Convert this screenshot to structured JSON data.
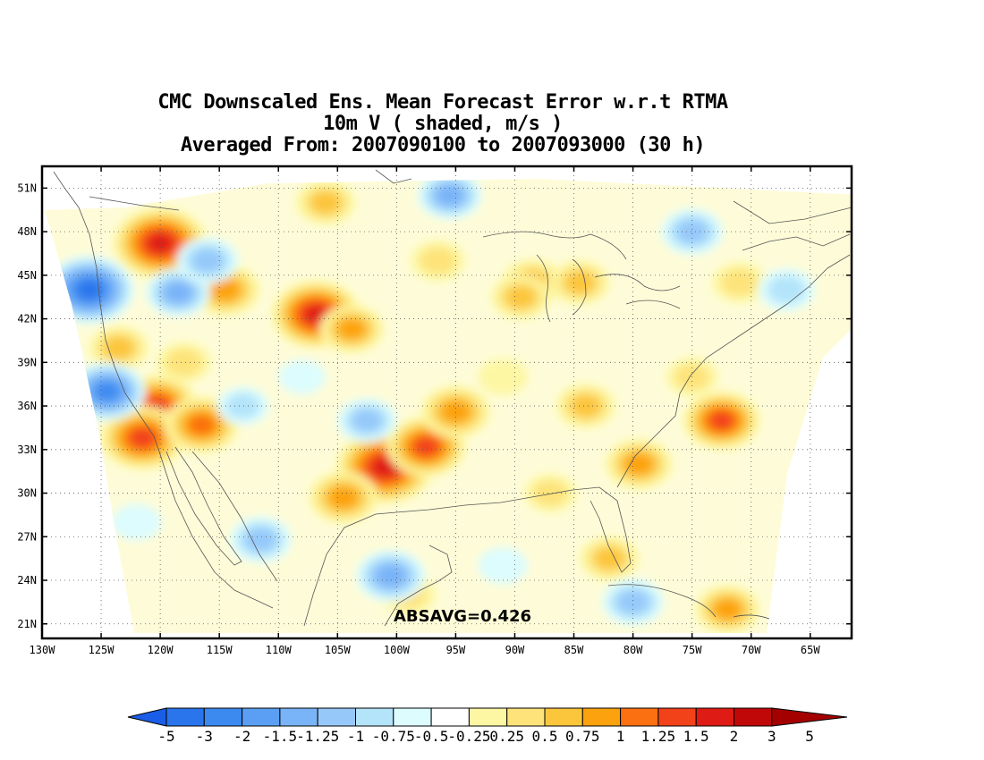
{
  "title": {
    "line1": "CMC Downscaled Ens. Mean Forecast Error w.r.t RTMA",
    "line2": "10m V ( shaded, m/s )",
    "line3": "Averaged From: 2007090100 to 2007093000 (30 h)"
  },
  "annotation": "ABSAVG=0.426",
  "axes": {
    "lat_labels": [
      "51N",
      "48N",
      "45N",
      "42N",
      "39N",
      "36N",
      "33N",
      "30N",
      "27N",
      "24N",
      "21N"
    ],
    "lon_labels": [
      "130W",
      "125W",
      "120W",
      "115W",
      "110W",
      "105W",
      "100W",
      "95W",
      "90W",
      "85W",
      "80W",
      "75W",
      "70W",
      "65W"
    ],
    "lat_values": [
      51,
      48,
      45,
      42,
      39,
      36,
      33,
      30,
      27,
      24,
      21
    ],
    "lon_values": [
      -130,
      -125,
      -120,
      -115,
      -110,
      -105,
      -100,
      -95,
      -90,
      -85,
      -80,
      -75,
      -70,
      -65
    ],
    "grid": "dotted"
  },
  "colorbar": {
    "labels": [
      "-5",
      "-3",
      "-2",
      "-1.5",
      "-1.25",
      "-1",
      "-0.75",
      "-0.5",
      "-0.25",
      "0.25",
      "0.5",
      "0.75",
      "1",
      "1.25",
      "1.5",
      "2",
      "3",
      "5"
    ],
    "colors": [
      "#1a5de6",
      "#2a75ec",
      "#3c8af0",
      "#5a9ff4",
      "#79b4f8",
      "#96c9fa",
      "#b4e4fa",
      "#dcfcfe",
      "#ffffff",
      "#fdf7a4",
      "#fde37a",
      "#fcc63c",
      "#fca20e",
      "#fb7010",
      "#f2421a",
      "#de1b14",
      "#c00808",
      "#a50000"
    ]
  },
  "chart_data": {
    "type": "heatmap",
    "title": "CMC Downscaled Ens. Mean Forecast Error w.r.t RTMA",
    "subtitle": "10m V ( shaded, m/s )",
    "xlim": [
      -130,
      -61.5
    ],
    "ylim": [
      20,
      52.5
    ],
    "units": "m/s",
    "absavg": 0.426,
    "blobs": [
      {
        "lon": -120,
        "lat": 47.2,
        "value": 2.2
      },
      {
        "lon": -106.8,
        "lat": 42.3,
        "value": 2.0
      },
      {
        "lon": -101,
        "lat": 31.8,
        "value": 2.3
      },
      {
        "lon": -97.5,
        "lat": 33.2,
        "value": 1.6
      },
      {
        "lon": -95,
        "lat": 35.6,
        "value": 1.2
      },
      {
        "lon": -120.3,
        "lat": 36,
        "value": 1.7
      },
      {
        "lon": -121.5,
        "lat": 33.8,
        "value": 1.8
      },
      {
        "lon": -116.5,
        "lat": 34.7,
        "value": 1.4
      },
      {
        "lon": -114.5,
        "lat": 44,
        "value": 1.2
      },
      {
        "lon": -103.8,
        "lat": 41.3,
        "value": 1.0
      },
      {
        "lon": -104.5,
        "lat": 29.7,
        "value": 1.2
      },
      {
        "lon": -72.5,
        "lat": 35,
        "value": 1.5
      },
      {
        "lon": -79.5,
        "lat": 32,
        "value": 1.1
      },
      {
        "lon": -88.5,
        "lat": 44.5,
        "value": 0.9
      },
      {
        "lon": -84.5,
        "lat": 44.5,
        "value": 0.8
      },
      {
        "lon": -89.5,
        "lat": 43.5,
        "value": 0.8
      },
      {
        "lon": -96.5,
        "lat": 46,
        "value": 0.6
      },
      {
        "lon": -106,
        "lat": 50,
        "value": 0.8
      },
      {
        "lon": -84,
        "lat": 36,
        "value": 0.8
      },
      {
        "lon": -82,
        "lat": 25.5,
        "value": 0.8
      },
      {
        "lon": -72,
        "lat": 22,
        "value": 1.0
      },
      {
        "lon": -123.5,
        "lat": 40,
        "value": 0.8
      },
      {
        "lon": -118,
        "lat": 39,
        "value": 0.6
      },
      {
        "lon": -75,
        "lat": 38,
        "value": 0.5
      },
      {
        "lon": -91,
        "lat": 38,
        "value": 0.4
      },
      {
        "lon": -71,
        "lat": 44.5,
        "value": 0.6
      },
      {
        "lon": -99,
        "lat": 23,
        "value": 0.6
      },
      {
        "lon": -87,
        "lat": 30,
        "value": 0.5
      },
      {
        "lon": -126,
        "lat": 44,
        "value": -2.0
      },
      {
        "lon": -124.5,
        "lat": 37,
        "value": -1.5
      },
      {
        "lon": -118.5,
        "lat": 43.8,
        "value": -1.0
      },
      {
        "lon": -116,
        "lat": 46,
        "value": -0.9
      },
      {
        "lon": -111.5,
        "lat": 26.8,
        "value": -0.9
      },
      {
        "lon": -100.5,
        "lat": 24.3,
        "value": -1.2
      },
      {
        "lon": -95.5,
        "lat": 50.5,
        "value": -1.0
      },
      {
        "lon": -102.5,
        "lat": 35,
        "value": -0.8
      },
      {
        "lon": -80,
        "lat": 22.5,
        "value": -0.9
      },
      {
        "lon": -75,
        "lat": 48,
        "value": -0.9
      },
      {
        "lon": -67,
        "lat": 44,
        "value": -0.7
      },
      {
        "lon": -91,
        "lat": 25,
        "value": -0.4
      },
      {
        "lon": -113,
        "lat": 36,
        "value": -0.5
      },
      {
        "lon": -122,
        "lat": 28,
        "value": -0.4
      },
      {
        "lon": -108,
        "lat": 38,
        "value": -0.3
      }
    ]
  }
}
